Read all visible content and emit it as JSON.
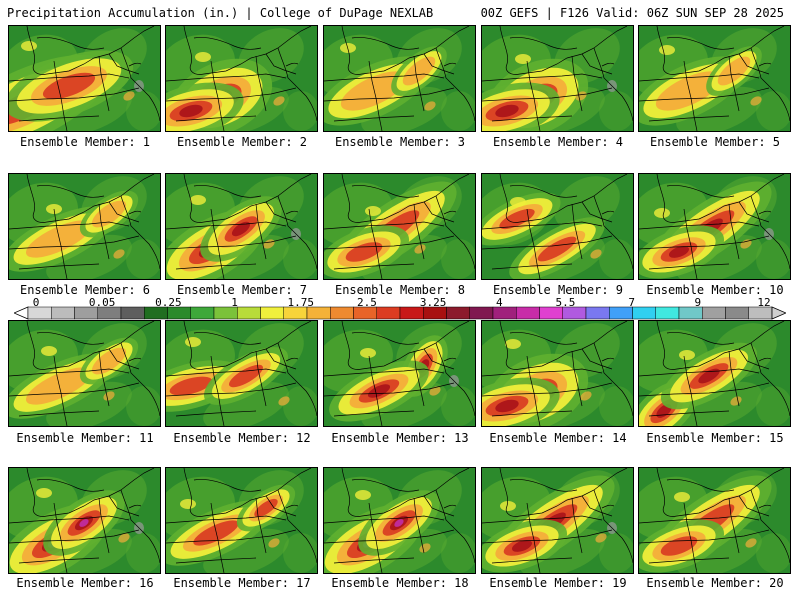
{
  "header": {
    "title_left": "Precipitation Accumulation (in.) | College of DuPage NEXLAB",
    "title_right": "00Z GEFS | F126 Valid: 06Z SUN SEP 28 2025"
  },
  "panels": [
    {
      "label": "Ensemble Member: 1",
      "max_intensity": 3,
      "core_shape": "wide-ohio-valley"
    },
    {
      "label": "Ensemble Member: 2",
      "max_intensity": 4,
      "core_shape": "kentucky-core"
    },
    {
      "label": "Ensemble Member: 3",
      "max_intensity": 2,
      "core_shape": "scattered"
    },
    {
      "label": "Ensemble Member: 4",
      "max_intensity": 4,
      "core_shape": "kentucky-core"
    },
    {
      "label": "Ensemble Member: 5",
      "max_intensity": 2,
      "core_shape": "scattered"
    },
    {
      "label": "Ensemble Member: 6",
      "max_intensity": 2,
      "core_shape": "weak"
    },
    {
      "label": "Ensemble Member: 7",
      "max_intensity": 4,
      "core_shape": "tennessee-core"
    },
    {
      "label": "Ensemble Member: 8",
      "max_intensity": 3,
      "core_shape": "appalachian"
    },
    {
      "label": "Ensemble Member: 9",
      "max_intensity": 3,
      "core_shape": "split"
    },
    {
      "label": "Ensemble Member: 10",
      "max_intensity": 4,
      "core_shape": "appalachian"
    },
    {
      "label": "Ensemble Member: 11",
      "max_intensity": 2,
      "core_shape": "weak"
    },
    {
      "label": "Ensemble Member: 12",
      "max_intensity": 3,
      "core_shape": "west-core"
    },
    {
      "label": "Ensemble Member: 13",
      "max_intensity": 4,
      "core_shape": "mid-atlantic"
    },
    {
      "label": "Ensemble Member: 14",
      "max_intensity": 4,
      "core_shape": "kentucky-core"
    },
    {
      "label": "Ensemble Member: 15",
      "max_intensity": 4,
      "core_shape": "southwest"
    },
    {
      "label": "Ensemble Member: 16",
      "max_intensity": 5,
      "core_shape": "tennessee-core"
    },
    {
      "label": "Ensemble Member: 17",
      "max_intensity": 3,
      "core_shape": "weak"
    },
    {
      "label": "Ensemble Member: 18",
      "max_intensity": 5,
      "core_shape": "tennessee-core"
    },
    {
      "label": "Ensemble Member: 19",
      "max_intensity": 4,
      "core_shape": "appalachian"
    },
    {
      "label": "Ensemble Member: 20",
      "max_intensity": 3,
      "core_shape": "appalachian"
    }
  ],
  "colorbar": {
    "tick_labels": [
      "0",
      "0.05",
      "0.25",
      "1",
      "1.75",
      "2.5",
      "3.25",
      "4",
      "5.5",
      "7",
      "9",
      "12"
    ],
    "colors": [
      "#d8d8d8",
      "#bcbcbc",
      "#9e9e9e",
      "#7e7e7e",
      "#5e5e5e",
      "#206e20",
      "#2b8a2b",
      "#3ea83a",
      "#7bc23a",
      "#b8dc3a",
      "#f0f03c",
      "#f7d43a",
      "#f4b238",
      "#ee8a30",
      "#e86428",
      "#dc3c22",
      "#c81818",
      "#a81010",
      "#8c1a2c",
      "#801850",
      "#a0207c",
      "#c82ca8",
      "#e040d0",
      "#b05ae0",
      "#7a78f0",
      "#40a0f8",
      "#30d0f0",
      "#40e8e0",
      "#70c8c8",
      "#a0a0a0",
      "#8a8a8a",
      "#bdbdbd"
    ]
  },
  "map_colors": {
    "base_green": "#2c8a2c",
    "light_green": "#5fb030",
    "yellow": "#f0ee3a",
    "orange": "#f4ae3a",
    "red": "#d83a22",
    "deep_red": "#a8121a",
    "magenta": "#c02ca0",
    "grey": "#9a9a9a",
    "boundary": "#000000"
  }
}
